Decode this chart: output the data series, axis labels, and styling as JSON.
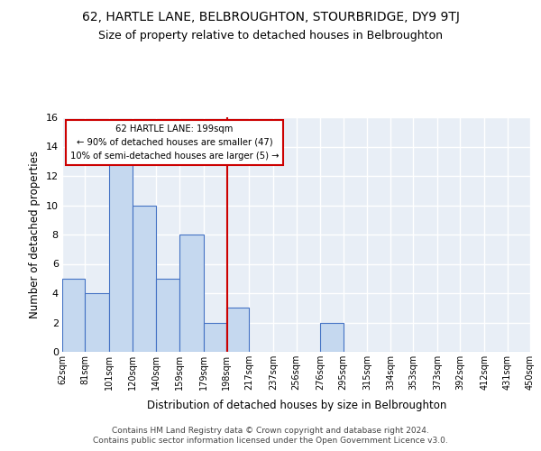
{
  "title": "62, HARTLE LANE, BELBROUGHTON, STOURBRIDGE, DY9 9TJ",
  "subtitle": "Size of property relative to detached houses in Belbroughton",
  "xlabel": "Distribution of detached houses by size in Belbroughton",
  "ylabel": "Number of detached properties",
  "bin_labels": [
    "62sqm",
    "81sqm",
    "101sqm",
    "120sqm",
    "140sqm",
    "159sqm",
    "179sqm",
    "198sqm",
    "217sqm",
    "237sqm",
    "256sqm",
    "276sqm",
    "295sqm",
    "315sqm",
    "334sqm",
    "353sqm",
    "373sqm",
    "392sqm",
    "412sqm",
    "431sqm",
    "450sqm"
  ],
  "bin_edges": [
    62,
    81,
    101,
    120,
    140,
    159,
    179,
    198,
    217,
    237,
    256,
    276,
    295,
    315,
    334,
    353,
    373,
    392,
    412,
    431,
    450
  ],
  "bar_values": [
    5,
    4,
    13,
    10,
    5,
    8,
    2,
    3,
    0,
    0,
    0,
    2,
    0,
    0,
    0,
    0,
    0,
    0,
    0,
    0
  ],
  "bar_color": "#c5d8ef",
  "bar_edgecolor": "#4472c4",
  "vline_x": 199,
  "vline_color": "#cc0000",
  "annotation_line1": "62 HARTLE LANE: 199sqm",
  "annotation_line2": "← 90% of detached houses are smaller (47)",
  "annotation_line3": "10% of semi-detached houses are larger (5) →",
  "annotation_box_color": "#ffffff",
  "annotation_box_edgecolor": "#cc0000",
  "ylim": [
    0,
    16
  ],
  "yticks": [
    0,
    2,
    4,
    6,
    8,
    10,
    12,
    14,
    16
  ],
  "background_color": "#e8eef6",
  "grid_color": "#ffffff",
  "footer_line1": "Contains HM Land Registry data © Crown copyright and database right 2024.",
  "footer_line2": "Contains public sector information licensed under the Open Government Licence v3.0.",
  "title_fontsize": 10,
  "subtitle_fontsize": 9,
  "xlabel_fontsize": 8.5,
  "ylabel_fontsize": 8.5
}
